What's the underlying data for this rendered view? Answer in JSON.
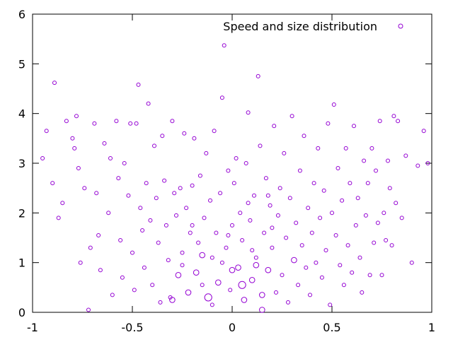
{
  "chart_data": {
    "type": "scatter",
    "title": "",
    "xlabel": "",
    "ylabel": "",
    "xlim": [
      -1,
      1
    ],
    "ylim": [
      0,
      6
    ],
    "x_ticks": [
      -1,
      -0.5,
      0,
      0.5,
      1
    ],
    "x_tick_labels": [
      "-1",
      "-0.5",
      "0",
      "0.5",
      "1"
    ],
    "y_ticks": [
      0,
      1,
      2,
      3,
      4,
      5,
      6
    ],
    "y_tick_labels": [
      "0",
      "1",
      "2",
      "3",
      "4",
      "5",
      "6"
    ],
    "grid": false,
    "legend_position": "top-right",
    "marker": "open-circle",
    "marker_size_varies": true,
    "series": [
      {
        "name": "Speed and size distribution",
        "color": "#9400d3",
        "points": [
          [
            -0.95,
            3.1,
            1
          ],
          [
            -0.93,
            3.65,
            1
          ],
          [
            -0.9,
            2.6,
            1
          ],
          [
            -0.89,
            4.62,
            1
          ],
          [
            -0.87,
            1.9,
            1
          ],
          [
            -0.85,
            2.2,
            1
          ],
          [
            -0.83,
            3.85,
            1
          ],
          [
            -0.8,
            3.5,
            1
          ],
          [
            -0.79,
            3.3,
            1
          ],
          [
            -0.78,
            3.95,
            1
          ],
          [
            -0.77,
            2.9,
            1
          ],
          [
            -0.76,
            1.0,
            1
          ],
          [
            -0.74,
            2.5,
            1
          ],
          [
            -0.72,
            0.05,
            1
          ],
          [
            -0.71,
            1.3,
            1
          ],
          [
            -0.69,
            3.8,
            1
          ],
          [
            -0.68,
            2.4,
            1
          ],
          [
            -0.67,
            1.55,
            1
          ],
          [
            -0.66,
            0.85,
            1
          ],
          [
            -0.64,
            3.4,
            1
          ],
          [
            -0.62,
            2.0,
            1
          ],
          [
            -0.61,
            3.1,
            1
          ],
          [
            -0.6,
            0.35,
            1
          ],
          [
            -0.58,
            3.85,
            1
          ],
          [
            -0.57,
            2.7,
            1
          ],
          [
            -0.56,
            1.45,
            1
          ],
          [
            -0.55,
            0.7,
            1
          ],
          [
            -0.54,
            3.0,
            1
          ],
          [
            -0.52,
            2.35,
            1
          ],
          [
            -0.51,
            3.8,
            1
          ],
          [
            -0.5,
            1.2,
            1
          ],
          [
            -0.49,
            0.45,
            1
          ],
          [
            -0.48,
            3.8,
            1
          ],
          [
            -0.47,
            4.58,
            1
          ],
          [
            -0.46,
            2.1,
            1
          ],
          [
            -0.45,
            1.65,
            1
          ],
          [
            -0.44,
            0.9,
            1
          ],
          [
            -0.43,
            2.6,
            1
          ],
          [
            -0.42,
            4.2,
            1
          ],
          [
            -0.41,
            1.85,
            1
          ],
          [
            -0.4,
            0.55,
            1
          ],
          [
            -0.39,
            3.35,
            1
          ],
          [
            -0.38,
            2.3,
            1
          ],
          [
            -0.37,
            1.4,
            1
          ],
          [
            -0.36,
            0.2,
            1
          ],
          [
            -0.35,
            3.55,
            1
          ],
          [
            -0.34,
            2.65,
            1
          ],
          [
            -0.33,
            1.75,
            1
          ],
          [
            -0.32,
            1.05,
            1
          ],
          [
            -0.31,
            0.3,
            1
          ],
          [
            -0.3,
            3.85,
            1
          ],
          [
            -0.29,
            2.4,
            1
          ],
          [
            -0.28,
            1.95,
            1
          ],
          [
            -0.27,
            0.75,
            2
          ],
          [
            -0.26,
            2.5,
            1
          ],
          [
            -0.25,
            1.2,
            1
          ],
          [
            -0.24,
            3.6,
            1
          ],
          [
            -0.23,
            2.1,
            1
          ],
          [
            -0.22,
            0.4,
            2
          ],
          [
            -0.21,
            1.6,
            1
          ],
          [
            -0.2,
            2.55,
            1
          ],
          [
            -0.19,
            3.5,
            1
          ],
          [
            -0.18,
            0.8,
            2
          ],
          [
            -0.17,
            1.4,
            1
          ],
          [
            -0.16,
            2.75,
            1
          ],
          [
            -0.15,
            0.55,
            1
          ],
          [
            -0.14,
            1.9,
            1
          ],
          [
            -0.13,
            3.2,
            1
          ],
          [
            -0.12,
            0.3,
            3
          ],
          [
            -0.11,
            2.25,
            1
          ],
          [
            -0.1,
            1.1,
            1
          ],
          [
            -0.09,
            3.65,
            1
          ],
          [
            -0.08,
            1.6,
            1
          ],
          [
            -0.07,
            0.6,
            2
          ],
          [
            -0.06,
            2.4,
            1
          ],
          [
            -0.05,
            4.32,
            1
          ],
          [
            -0.04,
            5.37,
            1
          ],
          [
            -0.03,
            1.3,
            1
          ],
          [
            -0.02,
            2.85,
            1
          ],
          [
            -0.01,
            0.45,
            1
          ],
          [
            0.0,
            1.75,
            1
          ],
          [
            0.01,
            2.6,
            1
          ],
          [
            0.02,
            3.1,
            1
          ],
          [
            0.03,
            0.9,
            2
          ],
          [
            0.04,
            2.0,
            1
          ],
          [
            0.05,
            1.45,
            1
          ],
          [
            0.06,
            0.25,
            2
          ],
          [
            0.07,
            3.0,
            1
          ],
          [
            0.08,
            4.02,
            1
          ],
          [
            0.09,
            1.85,
            1
          ],
          [
            0.1,
            0.65,
            2
          ],
          [
            0.11,
            2.35,
            1
          ],
          [
            0.12,
            1.1,
            1
          ],
          [
            0.13,
            4.75,
            1
          ],
          [
            0.14,
            3.35,
            1
          ],
          [
            0.15,
            0.05,
            2
          ],
          [
            0.16,
            1.6,
            1
          ],
          [
            0.17,
            2.7,
            1
          ],
          [
            0.18,
            0.85,
            2
          ],
          [
            0.19,
            2.15,
            1
          ],
          [
            0.2,
            1.3,
            1
          ],
          [
            0.21,
            3.75,
            1
          ],
          [
            0.22,
            0.4,
            1
          ],
          [
            0.23,
            1.95,
            1
          ],
          [
            0.24,
            2.5,
            1
          ],
          [
            0.25,
            0.75,
            1
          ],
          [
            0.26,
            3.2,
            1
          ],
          [
            0.27,
            1.5,
            1
          ],
          [
            0.28,
            0.2,
            1
          ],
          [
            0.29,
            2.3,
            1
          ],
          [
            0.3,
            3.95,
            1
          ],
          [
            0.31,
            1.05,
            2
          ],
          [
            0.32,
            1.8,
            1
          ],
          [
            0.33,
            0.55,
            1
          ],
          [
            0.34,
            2.85,
            1
          ],
          [
            0.35,
            1.35,
            1
          ],
          [
            0.36,
            3.55,
            1
          ],
          [
            0.37,
            0.9,
            1
          ],
          [
            0.38,
            2.1,
            1
          ],
          [
            0.39,
            0.35,
            1
          ],
          [
            0.4,
            1.6,
            1
          ],
          [
            0.41,
            2.6,
            1
          ],
          [
            0.42,
            1.0,
            1
          ],
          [
            0.43,
            3.3,
            1
          ],
          [
            0.44,
            1.9,
            1
          ],
          [
            0.45,
            0.7,
            1
          ],
          [
            0.46,
            2.45,
            1
          ],
          [
            0.47,
            1.25,
            1
          ],
          [
            0.48,
            3.8,
            1
          ],
          [
            0.49,
            0.15,
            1
          ],
          [
            0.5,
            2.0,
            1
          ],
          [
            0.51,
            4.18,
            1
          ],
          [
            0.52,
            1.55,
            1
          ],
          [
            0.53,
            2.9,
            1
          ],
          [
            0.54,
            0.95,
            1
          ],
          [
            0.55,
            2.25,
            1
          ],
          [
            0.56,
            0.55,
            1
          ],
          [
            0.57,
            3.3,
            1
          ],
          [
            0.58,
            1.35,
            1
          ],
          [
            0.59,
            2.6,
            1
          ],
          [
            0.6,
            0.8,
            1
          ],
          [
            0.61,
            3.75,
            1
          ],
          [
            0.62,
            1.75,
            1
          ],
          [
            0.63,
            2.3,
            1
          ],
          [
            0.64,
            1.1,
            1
          ],
          [
            0.65,
            0.4,
            1
          ],
          [
            0.66,
            3.05,
            1
          ],
          [
            0.67,
            1.95,
            1
          ],
          [
            0.68,
            2.6,
            1
          ],
          [
            0.69,
            0.75,
            1
          ],
          [
            0.7,
            3.3,
            1
          ],
          [
            0.71,
            1.4,
            1
          ],
          [
            0.72,
            2.85,
            1
          ],
          [
            0.73,
            1.8,
            1
          ],
          [
            0.74,
            3.85,
            1
          ],
          [
            0.75,
            0.75,
            1
          ],
          [
            0.76,
            2.0,
            1
          ],
          [
            0.77,
            1.45,
            1
          ],
          [
            0.78,
            3.05,
            1
          ],
          [
            0.79,
            2.5,
            1
          ],
          [
            0.8,
            1.35,
            1
          ],
          [
            0.81,
            3.95,
            1
          ],
          [
            0.82,
            2.2,
            1
          ],
          [
            0.83,
            3.85,
            1
          ],
          [
            0.85,
            1.9,
            1
          ],
          [
            0.87,
            3.15,
            1
          ],
          [
            0.9,
            1.0,
            1
          ],
          [
            0.93,
            2.95,
            1
          ],
          [
            0.96,
            3.65,
            1
          ],
          [
            0.98,
            3.0,
            1
          ],
          [
            -0.3,
            0.25,
            2
          ],
          [
            -0.25,
            0.95,
            1
          ],
          [
            -0.2,
            1.75,
            1
          ],
          [
            -0.15,
            1.15,
            2
          ],
          [
            -0.1,
            0.15,
            1
          ],
          [
            -0.05,
            1.0,
            1
          ],
          [
            0.0,
            0.85,
            2
          ],
          [
            0.05,
            0.55,
            3
          ],
          [
            0.1,
            1.25,
            1
          ],
          [
            0.15,
            0.35,
            2
          ],
          [
            0.2,
            1.7,
            1
          ],
          [
            0.12,
            0.95,
            2
          ],
          [
            -0.02,
            1.55,
            1
          ],
          [
            0.18,
            2.35,
            1
          ],
          [
            0.08,
            2.2,
            1
          ]
        ]
      }
    ]
  }
}
